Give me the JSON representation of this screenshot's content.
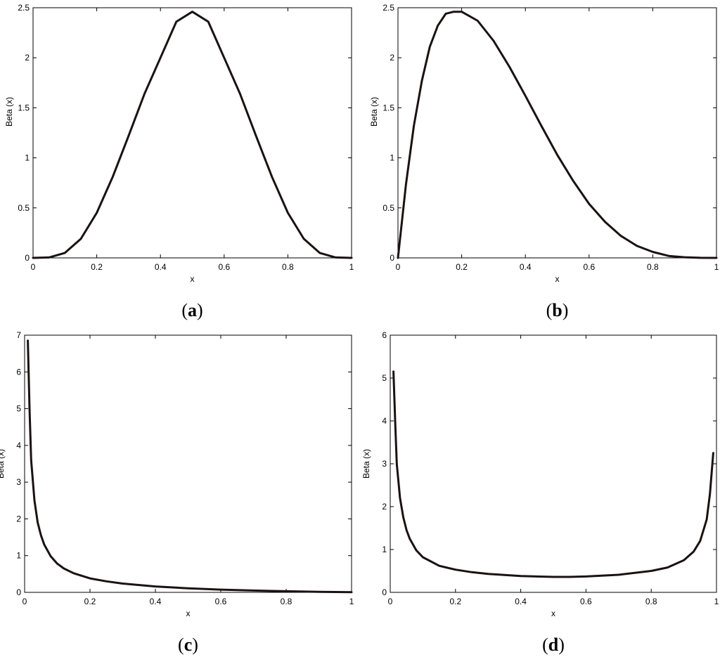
{
  "chart_data": [
    {
      "id": "a",
      "type": "line",
      "caption_letter": "a",
      "xlabel": "x",
      "ylabel": "Beta (x)",
      "xlim": [
        0,
        1
      ],
      "ylim": [
        0,
        2.5
      ],
      "xticks": [
        "0",
        "0.2",
        "0.4",
        "0.6",
        "0.8",
        "1"
      ],
      "yticks": [
        "0",
        "0.5",
        "1",
        "1.5",
        "2",
        "2.5"
      ],
      "series": [
        {
          "x": [
            0,
            0.05,
            0.1,
            0.15,
            0.2,
            0.25,
            0.3,
            0.35,
            0.4,
            0.45,
            0.5,
            0.55,
            0.6,
            0.65,
            0.7,
            0.75,
            0.8,
            0.85,
            0.9,
            0.95,
            1
          ],
          "y": [
            0,
            0.004,
            0.05,
            0.19,
            0.45,
            0.81,
            1.22,
            1.64,
            2.0,
            2.36,
            2.46,
            2.36,
            2.0,
            1.64,
            1.22,
            0.81,
            0.45,
            0.19,
            0.05,
            0.004,
            0
          ]
        }
      ]
    },
    {
      "id": "b",
      "type": "line",
      "caption_letter": "b",
      "xlabel": "x",
      "ylabel": "Beta (x)",
      "xlim": [
        0,
        1
      ],
      "ylim": [
        0,
        2.5
      ],
      "xticks": [
        "0",
        "0.2",
        "0.4",
        "0.6",
        "0.8",
        "1"
      ],
      "yticks": [
        "0",
        "0.5",
        "1",
        "1.5",
        "2",
        "2.5"
      ],
      "series": [
        {
          "x": [
            0,
            0.025,
            0.05,
            0.075,
            0.1,
            0.125,
            0.15,
            0.175,
            0.2,
            0.25,
            0.3,
            0.35,
            0.4,
            0.45,
            0.5,
            0.55,
            0.6,
            0.65,
            0.7,
            0.75,
            0.8,
            0.85,
            0.9,
            0.95,
            1
          ],
          "y": [
            0,
            0.73,
            1.32,
            1.77,
            2.11,
            2.32,
            2.44,
            2.46,
            2.46,
            2.37,
            2.17,
            1.91,
            1.62,
            1.32,
            1.03,
            0.77,
            0.54,
            0.36,
            0.22,
            0.12,
            0.06,
            0.02,
            0.006,
            0.001,
            0
          ]
        }
      ]
    },
    {
      "id": "c",
      "type": "line",
      "caption_letter": "c",
      "xlabel": "x",
      "ylabel": "Beta (x)",
      "xlim": [
        0,
        1
      ],
      "ylim": [
        0,
        7
      ],
      "xticks": [
        "0",
        "0.2",
        "0.4",
        "0.6",
        "0.8",
        "1"
      ],
      "yticks": [
        "0",
        "1",
        "2",
        "3",
        "4",
        "5",
        "6",
        "7"
      ],
      "series": [
        {
          "x": [
            0.01,
            0.015,
            0.02,
            0.03,
            0.04,
            0.05,
            0.06,
            0.08,
            0.1,
            0.12,
            0.15,
            0.2,
            0.25,
            0.3,
            0.4,
            0.5,
            0.6,
            0.7,
            0.8,
            0.9,
            1
          ],
          "y": [
            6.85,
            5.0,
            3.6,
            2.5,
            1.9,
            1.55,
            1.3,
            0.98,
            0.78,
            0.65,
            0.52,
            0.38,
            0.3,
            0.24,
            0.16,
            0.11,
            0.075,
            0.05,
            0.03,
            0.015,
            0.005
          ]
        }
      ]
    },
    {
      "id": "d",
      "type": "line",
      "caption_letter": "d",
      "xlabel": "x",
      "ylabel": "Beta (x)",
      "xlim": [
        0,
        1
      ],
      "ylim": [
        0,
        6
      ],
      "xticks": [
        "0",
        "0.2",
        "0.4",
        "0.6",
        "0.8",
        "1"
      ],
      "yticks": [
        "0",
        "1",
        "2",
        "3",
        "4",
        "5",
        "6"
      ],
      "series": [
        {
          "x": [
            0.01,
            0.015,
            0.02,
            0.03,
            0.04,
            0.05,
            0.06,
            0.08,
            0.1,
            0.15,
            0.2,
            0.25,
            0.3,
            0.4,
            0.5,
            0.55,
            0.6,
            0.7,
            0.8,
            0.85,
            0.9,
            0.93,
            0.95,
            0.97,
            0.98,
            0.99
          ],
          "y": [
            5.15,
            4.0,
            3.0,
            2.2,
            1.75,
            1.45,
            1.25,
            0.98,
            0.82,
            0.62,
            0.53,
            0.47,
            0.43,
            0.38,
            0.36,
            0.36,
            0.37,
            0.41,
            0.5,
            0.58,
            0.75,
            0.95,
            1.2,
            1.7,
            2.3,
            3.25
          ]
        }
      ]
    }
  ]
}
